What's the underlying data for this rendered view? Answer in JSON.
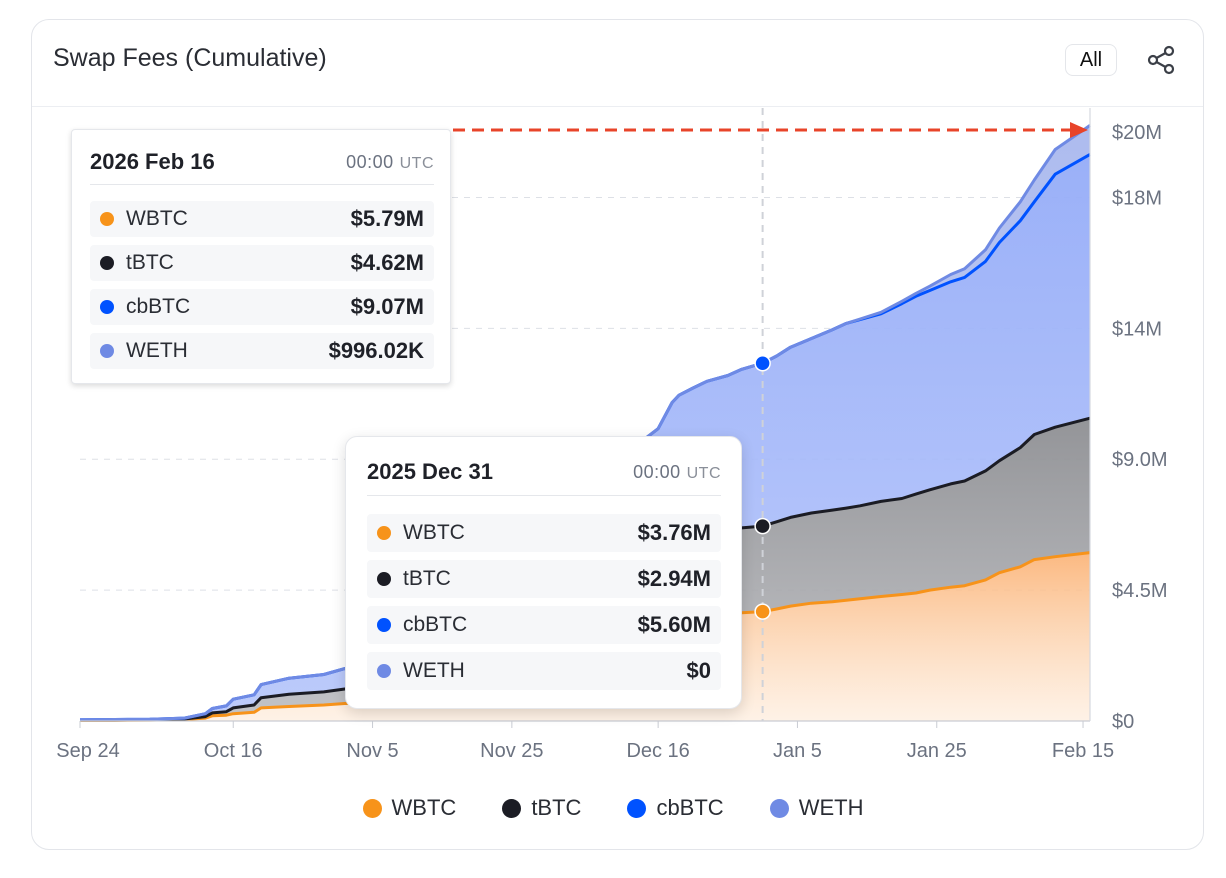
{
  "header": {
    "title": "Swap Fees (Cumulative)",
    "range_button": "All"
  },
  "colors": {
    "WBTC": "#f7931a",
    "tBTC": "#1b1c24",
    "cbBTC": "#0052ff",
    "WETH": "#6f8ae4",
    "highlight_arrow": "#e8442a"
  },
  "tooltips": [
    {
      "date": "2026 Feb 16",
      "time": "00:00",
      "tz": "UTC",
      "rows": [
        {
          "label": "WBTC",
          "value": "$5.79M"
        },
        {
          "label": "tBTC",
          "value": "$4.62M"
        },
        {
          "label": "cbBTC",
          "value": "$9.07M"
        },
        {
          "label": "WETH",
          "value": "$996.02K"
        }
      ]
    },
    {
      "date": "2025 Dec 31",
      "time": "00:00",
      "tz": "UTC",
      "rows": [
        {
          "label": "WBTC",
          "value": "$3.76M"
        },
        {
          "label": "tBTC",
          "value": "$2.94M"
        },
        {
          "label": "cbBTC",
          "value": "$5.60M"
        },
        {
          "label": "WETH",
          "value": "$0"
        }
      ]
    }
  ],
  "legend": [
    "WBTC",
    "tBTC",
    "cbBTC",
    "WETH"
  ],
  "chart_data": {
    "type": "area",
    "title": "Swap Fees (Cumulative)",
    "stacked": true,
    "x_start": "2025-09-24",
    "x_ticks": [
      "Sep 24",
      "Oct 16",
      "Nov 5",
      "Nov 25",
      "Dec 16",
      "Jan 5",
      "Jan 25",
      "Feb 15"
    ],
    "x_tick_days": [
      0,
      22,
      42,
      62,
      83,
      103,
      123,
      144
    ],
    "y_ticks": [
      "$0",
      "$4.5M",
      "$9.0M",
      "$14M",
      "$18M",
      "$20M"
    ],
    "y_tick_values": [
      0,
      4.5,
      9.0,
      13.5,
      18,
      20.25
    ],
    "ylim": [
      0,
      20.25
    ],
    "y_unit": "USD millions",
    "crosshair_day": 98,
    "x": [
      0,
      5,
      10,
      15,
      18,
      19,
      21,
      22,
      25,
      26,
      30,
      35,
      38,
      40,
      42,
      45,
      50,
      55,
      60,
      65,
      70,
      75,
      80,
      83,
      85,
      86,
      88,
      90,
      93,
      95,
      98,
      100,
      102,
      105,
      108,
      110,
      112,
      115,
      118,
      120,
      122,
      125,
      127,
      130,
      132,
      135,
      137,
      140,
      145
    ],
    "series": [
      {
        "name": "WBTC",
        "values": [
          0.02,
          0.02,
          0.03,
          0.05,
          0.1,
          0.18,
          0.2,
          0.25,
          0.3,
          0.45,
          0.5,
          0.55,
          0.6,
          0.6,
          0.62,
          0.7,
          1.0,
          1.4,
          1.8,
          2.2,
          2.5,
          2.8,
          3.0,
          3.2,
          3.4,
          3.45,
          3.5,
          3.6,
          3.68,
          3.72,
          3.76,
          3.85,
          3.95,
          4.05,
          4.1,
          4.15,
          4.2,
          4.28,
          4.35,
          4.4,
          4.5,
          4.6,
          4.65,
          4.85,
          5.1,
          5.3,
          5.55,
          5.65,
          5.79
        ]
      },
      {
        "name": "tBTC",
        "values": [
          0.01,
          0.01,
          0.01,
          0.02,
          0.05,
          0.1,
          0.12,
          0.2,
          0.25,
          0.35,
          0.42,
          0.45,
          0.5,
          0.5,
          0.52,
          0.6,
          0.8,
          1.0,
          1.3,
          1.6,
          1.9,
          2.2,
          2.5,
          2.65,
          2.75,
          2.8,
          2.85,
          2.88,
          2.9,
          2.92,
          2.94,
          3.0,
          3.05,
          3.1,
          3.15,
          3.17,
          3.2,
          3.27,
          3.3,
          3.4,
          3.45,
          3.55,
          3.6,
          3.75,
          3.85,
          4.1,
          4.3,
          4.45,
          4.62
        ]
      },
      {
        "name": "cbBTC",
        "values": [
          0.01,
          0.02,
          0.02,
          0.03,
          0.1,
          0.15,
          0.2,
          0.3,
          0.35,
          0.45,
          0.55,
          0.6,
          0.7,
          0.75,
          0.76,
          0.8,
          1.0,
          1.3,
          1.7,
          2.2,
          2.8,
          3.4,
          4.0,
          4.2,
          4.8,
          4.95,
          5.1,
          5.2,
          5.3,
          5.45,
          5.6,
          5.7,
          5.85,
          6.0,
          6.2,
          6.35,
          6.4,
          6.45,
          6.7,
          6.8,
          6.85,
          6.95,
          7.0,
          7.2,
          7.5,
          7.8,
          8.0,
          8.7,
          9.07
        ]
      },
      {
        "name": "WETH",
        "values": [
          0,
          0,
          0,
          0,
          0,
          0,
          0,
          0,
          0,
          0,
          0,
          0,
          0,
          0,
          0,
          0,
          0,
          0,
          0,
          0,
          0,
          0,
          0,
          0,
          0,
          0,
          0,
          0,
          0,
          0,
          0,
          0,
          0,
          0,
          0,
          0,
          0.02,
          0.05,
          0.08,
          0.1,
          0.15,
          0.25,
          0.3,
          0.4,
          0.5,
          0.65,
          0.75,
          0.85,
          0.996
        ]
      }
    ]
  }
}
